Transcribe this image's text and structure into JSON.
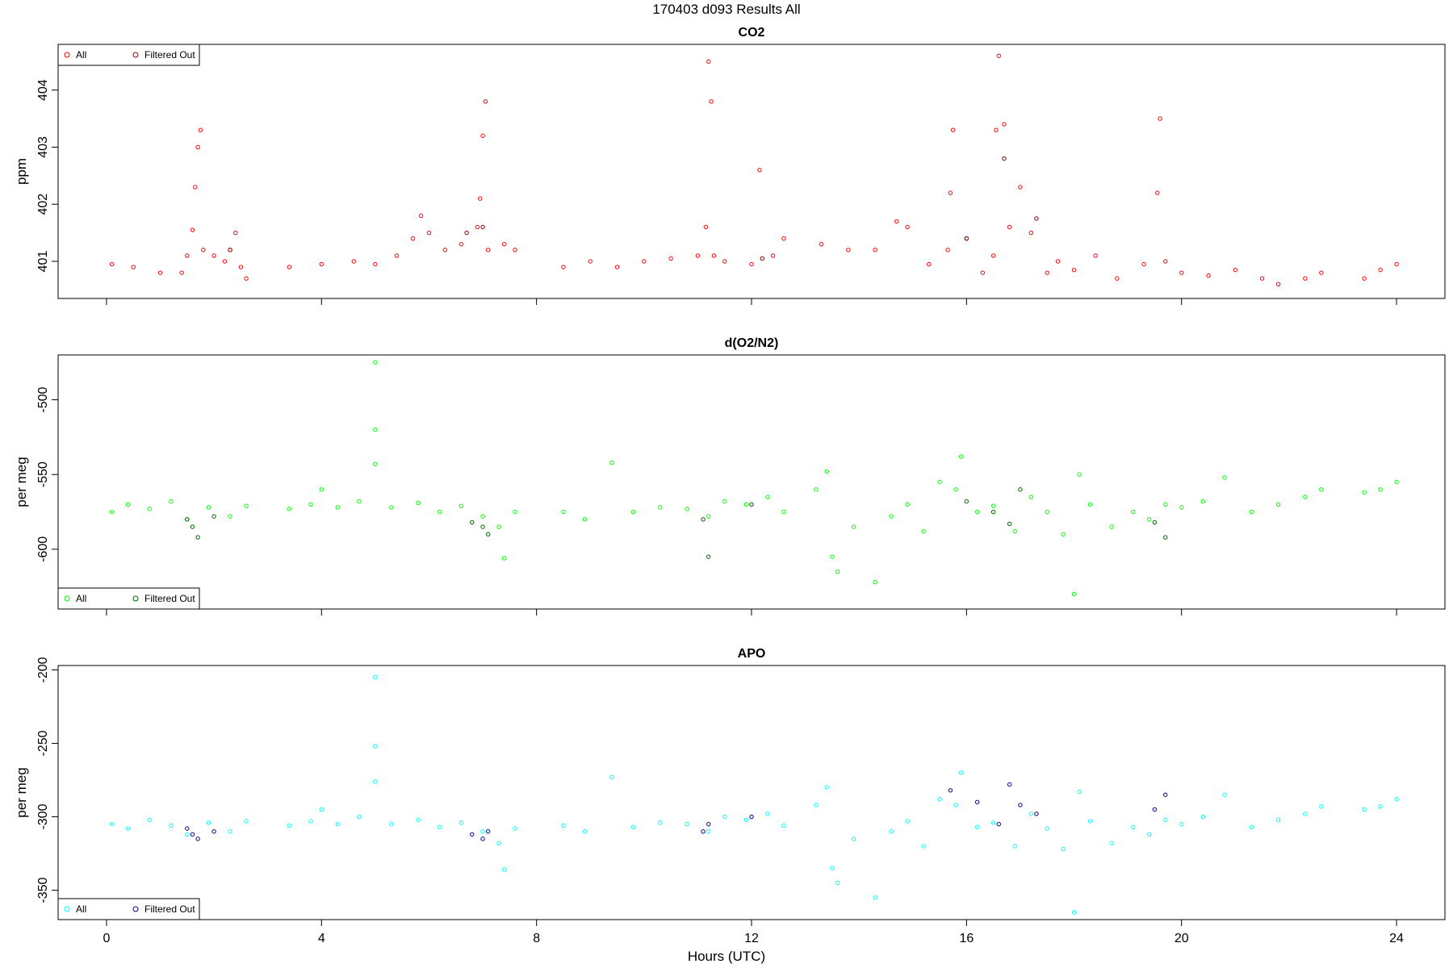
{
  "page_title": "170403   d093   Results All",
  "xlabel": "Hours (UTC)",
  "colors": {
    "co2_all": "#ff0000",
    "co2_filtered": "#8b0000",
    "o2n2_all": "#00ff00",
    "o2n2_filtered": "#006400",
    "apo_all": "#00ffff",
    "apo_filtered": "#00008b"
  },
  "chart_data": [
    {
      "type": "scatter",
      "title": "CO2",
      "ylabel": "ppm",
      "xlabel": "",
      "xlim": [
        -0.9,
        24.9
      ],
      "ylim": [
        400.35,
        404.8
      ],
      "xticks": [
        0,
        4,
        8,
        12,
        16,
        20,
        24
      ],
      "yticks": [
        401,
        402,
        403,
        404
      ],
      "grid": false,
      "legend": {
        "placement": "top-left",
        "entries": [
          "All",
          "Filtered Out"
        ]
      },
      "series": [
        {
          "name": "All",
          "color": "#ff0000",
          "marker": "open-circle",
          "x": [
            0.1,
            0.5,
            1.0,
            1.4,
            1.5,
            1.6,
            1.65,
            1.7,
            1.75,
            1.8,
            2.0,
            2.2,
            2.3,
            2.4,
            2.5,
            2.6,
            3.4,
            4.0,
            4.6,
            5.0,
            5.4,
            5.7,
            5.85,
            6.0,
            6.3,
            6.6,
            6.9,
            6.95,
            7.0,
            7.05,
            7.1,
            7.4,
            7.6,
            8.5,
            9.0,
            9.5,
            10.0,
            10.5,
            11.0,
            11.15,
            11.2,
            11.25,
            11.3,
            11.5,
            12.0,
            12.15,
            12.4,
            12.6,
            13.3,
            13.8,
            14.3,
            14.7,
            14.9,
            15.3,
            15.65,
            15.7,
            15.75,
            16.0,
            16.3,
            16.5,
            16.55,
            16.6,
            16.7,
            16.8,
            17.0,
            17.2,
            17.5,
            17.7,
            18.0,
            18.4,
            18.8,
            19.3,
            19.55,
            19.6,
            19.7,
            20.0,
            20.5,
            21.0,
            21.5,
            21.8,
            22.3,
            22.6,
            23.4,
            23.7,
            24.0
          ],
          "y": [
            400.95,
            400.9,
            400.8,
            400.8,
            401.1,
            401.55,
            402.3,
            403.0,
            403.3,
            401.2,
            401.1,
            401.0,
            401.2,
            401.5,
            400.9,
            400.7,
            400.9,
            400.95,
            401.0,
            400.95,
            401.1,
            401.4,
            401.8,
            401.5,
            401.2,
            401.3,
            401.6,
            402.1,
            403.2,
            403.8,
            401.2,
            401.3,
            401.2,
            400.9,
            401.0,
            400.9,
            401.0,
            401.05,
            401.1,
            401.6,
            404.5,
            403.8,
            401.1,
            401.0,
            400.95,
            402.6,
            401.1,
            401.4,
            401.3,
            401.2,
            401.2,
            401.7,
            401.6,
            400.95,
            401.2,
            402.2,
            403.3,
            401.4,
            400.8,
            401.1,
            403.3,
            404.6,
            403.4,
            401.6,
            402.3,
            401.5,
            400.8,
            401.0,
            400.85,
            401.1,
            400.7,
            400.95,
            402.2,
            403.5,
            401.0,
            400.8,
            400.75,
            400.85,
            400.7,
            400.6,
            400.7,
            400.8,
            400.7,
            400.85,
            400.95
          ]
        },
        {
          "name": "Filtered Out",
          "color": "#8b0000",
          "marker": "open-circle",
          "x": [
            2.3,
            6.7,
            7.0,
            12.2,
            16.0,
            16.7,
            17.3
          ],
          "y": [
            401.2,
            401.5,
            401.6,
            401.05,
            401.4,
            402.8,
            401.75
          ]
        }
      ]
    },
    {
      "type": "scatter",
      "title": "d(O2/N2)",
      "ylabel": "per meg",
      "xlabel": "",
      "xlim": [
        -0.9,
        24.9
      ],
      "ylim": [
        -640,
        -470
      ],
      "xticks": [
        0,
        4,
        8,
        12,
        16,
        20,
        24
      ],
      "yticks": [
        -500,
        -550,
        -600
      ],
      "grid": false,
      "legend": {
        "placement": "bottom-left",
        "entries": [
          "All",
          "Filtered Out"
        ]
      },
      "series": [
        {
          "name": "All",
          "color": "#00ff00",
          "marker": "open-circle",
          "x": [
            0.1,
            0.4,
            0.8,
            1.2,
            1.5,
            1.9,
            2.3,
            2.6,
            3.4,
            3.8,
            4.0,
            4.3,
            4.7,
            5.0,
            5.0,
            5.0,
            5.3,
            5.8,
            6.2,
            6.6,
            7.0,
            7.3,
            7.4,
            7.6,
            8.5,
            8.9,
            9.4,
            9.8,
            10.3,
            10.8,
            11.2,
            11.5,
            11.9,
            12.3,
            12.6,
            13.2,
            13.4,
            13.5,
            13.6,
            13.9,
            14.3,
            14.6,
            14.9,
            15.2,
            15.5,
            15.8,
            15.9,
            16.2,
            16.5,
            16.9,
            17.2,
            17.5,
            17.8,
            18.0,
            18.1,
            18.3,
            18.7,
            19.1,
            19.4,
            19.7,
            20.0,
            20.4,
            20.8,
            21.3,
            21.8,
            22.3,
            22.6,
            23.4,
            23.7,
            24.0
          ],
          "y": [
            -575,
            -570,
            -573,
            -568,
            -580,
            -572,
            -578,
            -571,
            -573,
            -570,
            -560,
            -572,
            -568,
            -475,
            -520,
            -543,
            -572,
            -569,
            -575,
            -571,
            -578,
            -585,
            -606,
            -575,
            -575,
            -580,
            -542,
            -575,
            -572,
            -573,
            -578,
            -568,
            -570,
            -565,
            -575,
            -560,
            -548,
            -605,
            -615,
            -585,
            -622,
            -578,
            -570,
            -588,
            -555,
            -560,
            -538,
            -575,
            -571,
            -588,
            -565,
            -575,
            -590,
            -630,
            -550,
            -570,
            -585,
            -575,
            -580,
            -570,
            -572,
            -568,
            -552,
            -575,
            -570,
            -565,
            -560,
            -562,
            -560,
            -555
          ]
        },
        {
          "name": "Filtered Out",
          "color": "#006400",
          "marker": "open-circle",
          "x": [
            1.5,
            1.6,
            1.7,
            2.0,
            6.8,
            7.0,
            7.1,
            11.1,
            11.2,
            12.0,
            16.0,
            16.5,
            16.8,
            17.0,
            19.5,
            19.7
          ],
          "y": [
            -580,
            -585,
            -592,
            -578,
            -582,
            -585,
            -590,
            -580,
            -605,
            -570,
            -568,
            -575,
            -583,
            -560,
            -582,
            -592
          ]
        }
      ]
    },
    {
      "type": "scatter",
      "title": "APO",
      "ylabel": "per meg",
      "xlabel": "Hours (UTC)",
      "xlim": [
        -0.9,
        24.9
      ],
      "ylim": [
        -370,
        -197
      ],
      "xticks": [
        0,
        4,
        8,
        12,
        16,
        20,
        24
      ],
      "yticks": [
        -200,
        -250,
        -300,
        -350
      ],
      "grid": false,
      "legend": {
        "placement": "bottom-left",
        "entries": [
          "All",
          "Filtered Out"
        ]
      },
      "series": [
        {
          "name": "All",
          "color": "#00ffff",
          "marker": "open-circle",
          "x": [
            0.1,
            0.4,
            0.8,
            1.2,
            1.5,
            1.9,
            2.3,
            2.6,
            3.4,
            3.8,
            4.0,
            4.3,
            4.7,
            5.0,
            5.0,
            5.0,
            5.3,
            5.8,
            6.2,
            6.6,
            7.0,
            7.3,
            7.4,
            7.6,
            8.5,
            8.9,
            9.4,
            9.8,
            10.3,
            10.8,
            11.2,
            11.5,
            11.9,
            12.3,
            12.6,
            13.2,
            13.4,
            13.5,
            13.6,
            13.9,
            14.3,
            14.6,
            14.9,
            15.2,
            15.5,
            15.8,
            15.9,
            16.2,
            16.5,
            16.9,
            17.2,
            17.5,
            17.8,
            18.0,
            18.1,
            18.3,
            18.7,
            19.1,
            19.4,
            19.7,
            20.0,
            20.4,
            20.8,
            21.3,
            21.8,
            22.3,
            22.6,
            23.4,
            23.7,
            24.0
          ],
          "y": [
            -305,
            -308,
            -302,
            -306,
            -312,
            -304,
            -310,
            -303,
            -306,
            -303,
            -295,
            -305,
            -300,
            -205,
            -252,
            -276,
            -305,
            -302,
            -307,
            -304,
            -310,
            -318,
            -336,
            -308,
            -306,
            -310,
            -273,
            -307,
            -304,
            -305,
            -310,
            -300,
            -302,
            -298,
            -306,
            -292,
            -280,
            -335,
            -345,
            -315,
            -355,
            -310,
            -303,
            -320,
            -288,
            -292,
            -270,
            -307,
            -304,
            -320,
            -298,
            -308,
            -322,
            -365,
            -283,
            -303,
            -318,
            -307,
            -312,
            -302,
            -305,
            -300,
            -285,
            -307,
            -302,
            -298,
            -293,
            -295,
            -293,
            -288
          ]
        },
        {
          "name": "Filtered Out",
          "color": "#00008b",
          "marker": "open-circle",
          "x": [
            1.5,
            1.6,
            1.7,
            2.0,
            6.8,
            7.0,
            7.1,
            11.1,
            11.2,
            12.0,
            15.7,
            16.2,
            16.6,
            16.8,
            17.0,
            17.3,
            19.5,
            19.7
          ],
          "y": [
            -308,
            -312,
            -315,
            -310,
            -312,
            -315,
            -310,
            -310,
            -305,
            -300,
            -282,
            -290,
            -305,
            -278,
            -292,
            -298,
            -295,
            -285
          ]
        }
      ]
    }
  ]
}
